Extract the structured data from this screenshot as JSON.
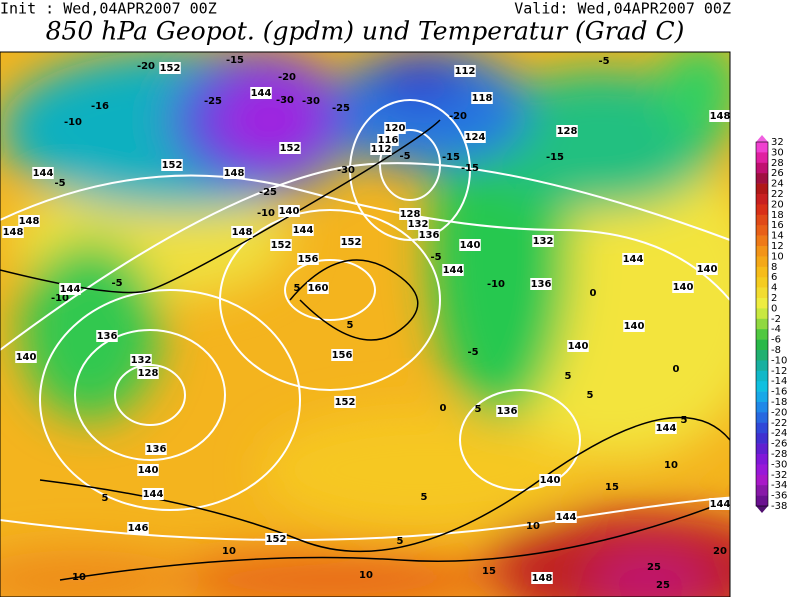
{
  "header": {
    "init": "Init : Wed,04APR2007 00Z",
    "valid": "Valid: Wed,04APR2007 00Z",
    "title": "850 hPa Geopot. (gpdm) und Temperatur (Grad C)"
  },
  "colorbar": {
    "labels": [
      "32",
      "30",
      "28",
      "26",
      "24",
      "22",
      "20",
      "18",
      "16",
      "14",
      "12",
      "10",
      "8",
      "6",
      "4",
      "2",
      "0",
      "-2",
      "-4",
      "-6",
      "-8",
      "-10",
      "-12",
      "-14",
      "-16",
      "-18",
      "-20",
      "-22",
      "-24",
      "-26",
      "-28",
      "-30",
      "-32",
      "-34",
      "-36",
      "-38"
    ]
  },
  "map": {
    "labels": [
      "-20",
      "152",
      "-15",
      "-20",
      "144",
      "-25",
      "-30",
      "-30",
      "-25",
      "112",
      "-5",
      "-16",
      "118",
      "-20",
      "148",
      "-10",
      "120",
      "124",
      "128",
      "152",
      "116",
      "112",
      "-5",
      "-15",
      "-15",
      "144",
      "152",
      "-30",
      "-15",
      "148",
      "-5",
      "-25",
      "-10",
      "140",
      "128",
      "132",
      "148",
      "148",
      "148",
      "144",
      "136",
      "132",
      "152",
      "152",
      "140",
      "-5",
      "156",
      "144",
      "144",
      "140",
      "-10",
      "144",
      "-5",
      "5",
      "160",
      "-10",
      "136",
      "140",
      "0",
      "5",
      "140",
      "136",
      "140",
      "156",
      "-5",
      "140",
      "132",
      "128",
      "5",
      "0",
      "152",
      "0",
      "5",
      "136",
      "5",
      "5",
      "144",
      "136",
      "140",
      "10",
      "5",
      "144",
      "140",
      "15",
      "5",
      "146",
      "10",
      "144",
      "144",
      "152",
      "10",
      "5",
      "20",
      "10",
      "15",
      "10",
      "148",
      "25",
      "25"
    ]
  }
}
